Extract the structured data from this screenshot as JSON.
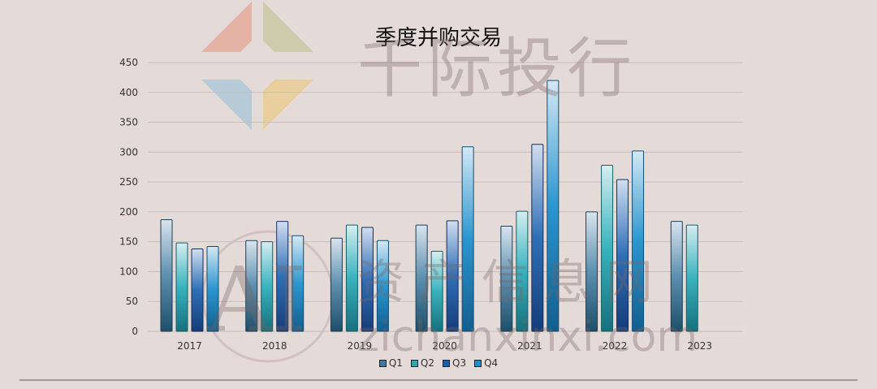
{
  "chart_data": {
    "type": "bar",
    "title": "季度并购交易",
    "categories": [
      "2017",
      "2018",
      "2019",
      "2020",
      "2021",
      "2022",
      "2023"
    ],
    "series": [
      {
        "name": "Q1",
        "values": [
          187,
          152,
          156,
          178,
          176,
          200,
          184
        ]
      },
      {
        "name": "Q2",
        "values": [
          148,
          150,
          178,
          134,
          201,
          278,
          178
        ]
      },
      {
        "name": "Q3",
        "values": [
          138,
          184,
          174,
          185,
          313,
          254,
          null
        ]
      },
      {
        "name": "Q4",
        "values": [
          142,
          160,
          152,
          309,
          420,
          302,
          null
        ]
      }
    ],
    "ylim": [
      0,
      450
    ],
    "yticks": [
      0,
      50,
      100,
      150,
      200,
      250,
      300,
      350,
      400,
      450
    ],
    "grid": true,
    "legend_position": "bottom"
  },
  "colors": {
    "background": "#e4dad8",
    "grid": "#c9bfbd",
    "q1": "#3f7a9c",
    "q2": "#2aa9b5",
    "q3": "#1f5fa8",
    "q4": "#1f8fcc"
  },
  "watermark": {
    "logo_text": "千际投行",
    "site_text": "资 产 信 息 网",
    "url_text": "zichanxinxi.com",
    "badge_text": "AI"
  }
}
